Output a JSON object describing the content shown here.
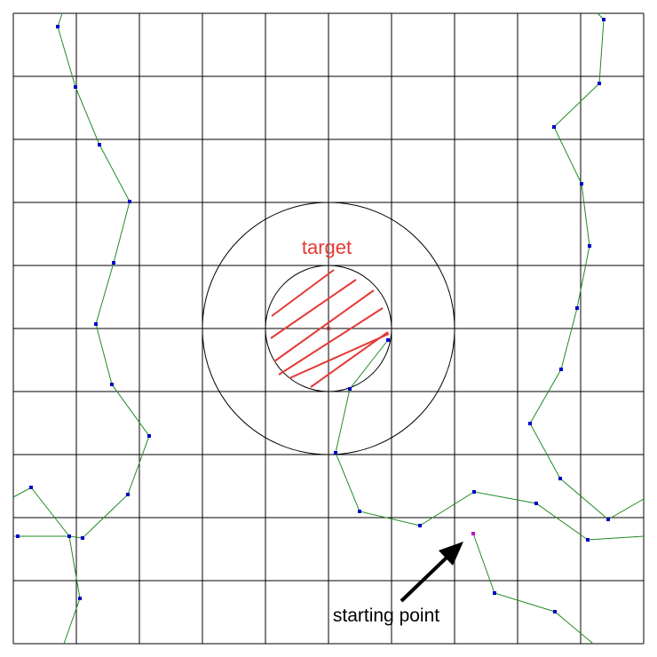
{
  "labels": {
    "target": "target",
    "start": "starting point"
  },
  "colors": {
    "grid": "#000000",
    "path": "#228b22",
    "vertex": "#0000cc",
    "start_vertex": "#cc00cc",
    "target": "#e53935",
    "arrow": "#000000"
  },
  "icons": {
    "arrow": "arrow-pointing-to-start-icon"
  }
}
